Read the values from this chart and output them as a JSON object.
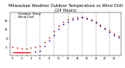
{
  "title": "Milwaukee Weather Outdoor Temperature vs Wind Chill (24 Hours)",
  "title_fontsize": 3.8,
  "background_color": "#ffffff",
  "grid_color": "#888888",
  "temp_color": "#cc0000",
  "wind_chill_color": "#000099",
  "hours": [
    0,
    1,
    2,
    3,
    4,
    5,
    6,
    7,
    8,
    9,
    10,
    11,
    12,
    13,
    14,
    15,
    16,
    17,
    18,
    19,
    20,
    21,
    22,
    23
  ],
  "outdoor_temp": [
    -5,
    -6,
    -7,
    -7,
    -6,
    -5,
    -3,
    3,
    12,
    22,
    31,
    38,
    42,
    45,
    46,
    47,
    45,
    42,
    38,
    33,
    28,
    23,
    18,
    14
  ],
  "wind_chill": [
    -14,
    -14,
    -14,
    -14,
    -14,
    -13,
    -11,
    -4,
    6,
    16,
    26,
    34,
    38,
    42,
    44,
    46,
    44,
    41,
    37,
    32,
    26,
    21,
    16,
    12
  ],
  "wind_chill_missing": [
    0,
    1,
    2,
    3,
    4
  ],
  "ylim": [
    -20,
    55
  ],
  "yticks": [
    -5,
    10,
    25,
    40
  ],
  "legend_labels": [
    "Outdoor Temp",
    "Wind Chill"
  ],
  "legend_fontsize": 3.0,
  "marker_size": 1.5,
  "vgrid_positions": [
    3,
    6,
    9,
    12,
    15,
    18,
    21
  ]
}
